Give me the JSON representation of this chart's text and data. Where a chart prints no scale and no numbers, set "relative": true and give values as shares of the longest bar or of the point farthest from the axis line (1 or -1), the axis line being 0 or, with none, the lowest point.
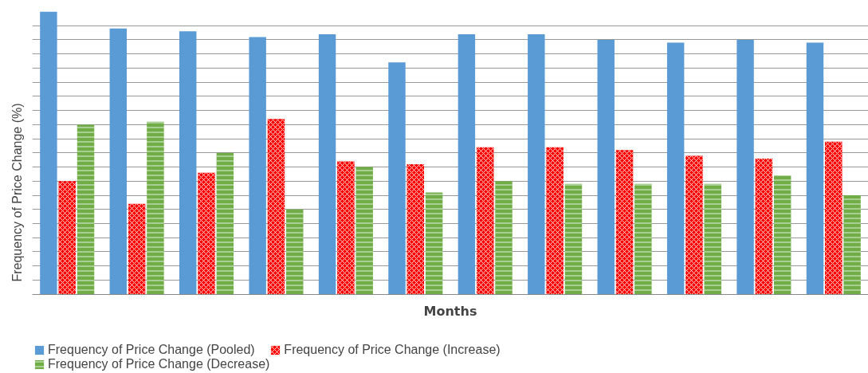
{
  "chart_data": {
    "type": "bar",
    "relative": true,
    "xlabel": "Months",
    "ylabel": "Frequency of Price Change (%)",
    "categories": [
      null,
      null,
      null,
      null,
      null,
      null,
      null,
      null,
      null,
      null,
      null,
      null
    ],
    "series": [
      {
        "name": "Frequency of Price Change (Pooled)",
        "color": "#5b9bd5",
        "values": [
          1.0,
          0.94,
          0.93,
          0.91,
          0.92,
          0.82,
          0.92,
          0.92,
          0.9,
          0.89,
          0.9,
          0.89
        ]
      },
      {
        "name": "Frequency of Price Change (Increase)",
        "color": "#ff0000",
        "values": [
          0.4,
          0.32,
          0.43,
          0.62,
          0.47,
          0.46,
          0.52,
          0.52,
          0.51,
          0.49,
          0.48,
          0.54
        ]
      },
      {
        "name": "Frequency of Price Change (Decrease)",
        "color": "#70ad47",
        "values": [
          0.6,
          0.61,
          0.5,
          0.3,
          0.45,
          0.36,
          0.4,
          0.39,
          0.39,
          0.39,
          0.42,
          0.35
        ]
      }
    ],
    "grid": "y",
    "legend": "bottom"
  }
}
